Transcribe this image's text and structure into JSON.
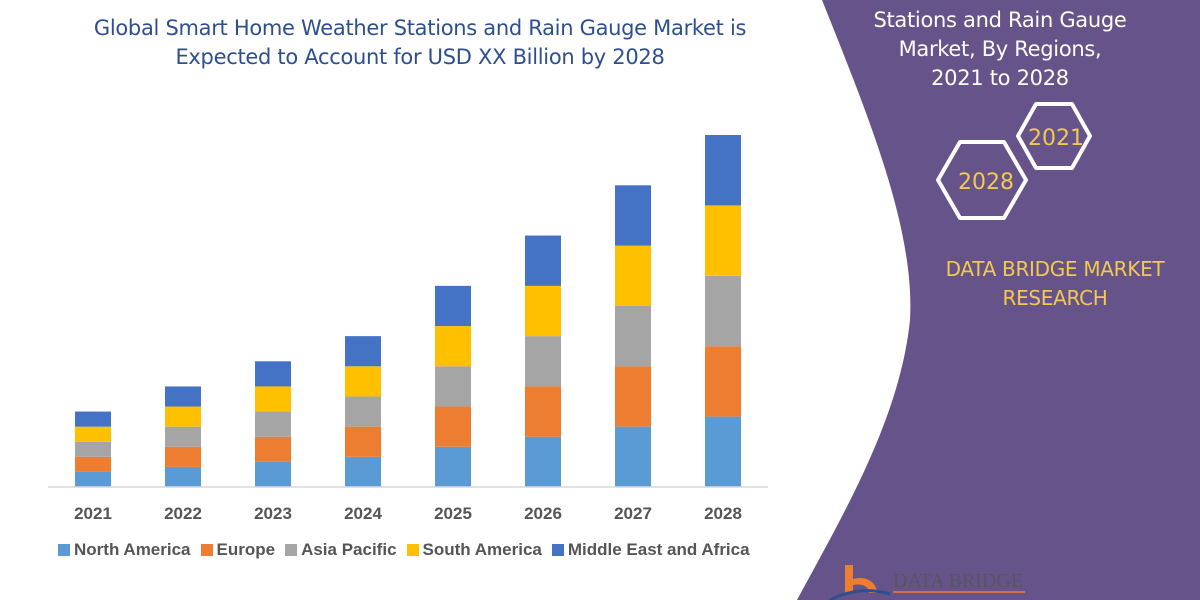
{
  "chart_data": {
    "type": "bar",
    "stacked": true,
    "title": "Global Smart Home Weather Stations and Rain Gauge Market is Expected to Account for USD XX Billion by 2028",
    "categories": [
      "2021",
      "2022",
      "2023",
      "2024",
      "2025",
      "2026",
      "2027",
      "2028"
    ],
    "series": [
      {
        "name": "North America",
        "color": "#5b9bd5",
        "values": [
          15,
          20,
          25,
          30,
          40,
          50,
          60,
          70
        ]
      },
      {
        "name": "Europe",
        "color": "#ed7d31",
        "values": [
          15,
          20,
          25,
          30,
          40,
          50,
          60,
          70
        ]
      },
      {
        "name": "Asia Pacific",
        "color": "#a5a5a5",
        "values": [
          15,
          20,
          25,
          30,
          40,
          50,
          60,
          70
        ]
      },
      {
        "name": "South America",
        "color": "#ffc000",
        "values": [
          15,
          20,
          25,
          30,
          40,
          50,
          60,
          70
        ]
      },
      {
        "name": "Middle East and Africa",
        "color": "#4472c4",
        "values": [
          15,
          20,
          25,
          30,
          40,
          50,
          60,
          70
        ]
      }
    ],
    "ylim": [
      0,
      360
    ],
    "y_axis_shown": false,
    "grid": false,
    "legend_position": "bottom"
  },
  "panel": {
    "title_lines": [
      "Stations and Rain Gauge",
      "Market, By Regions,",
      "2021 to 2028"
    ],
    "hex_years": [
      "2021",
      "2028"
    ],
    "brand_lines": [
      "DATA BRIDGE MARKET",
      "RESEARCH"
    ],
    "logo_text": "DATA BRIDGE",
    "color": "#65538a",
    "accent": "#f3c94e"
  }
}
